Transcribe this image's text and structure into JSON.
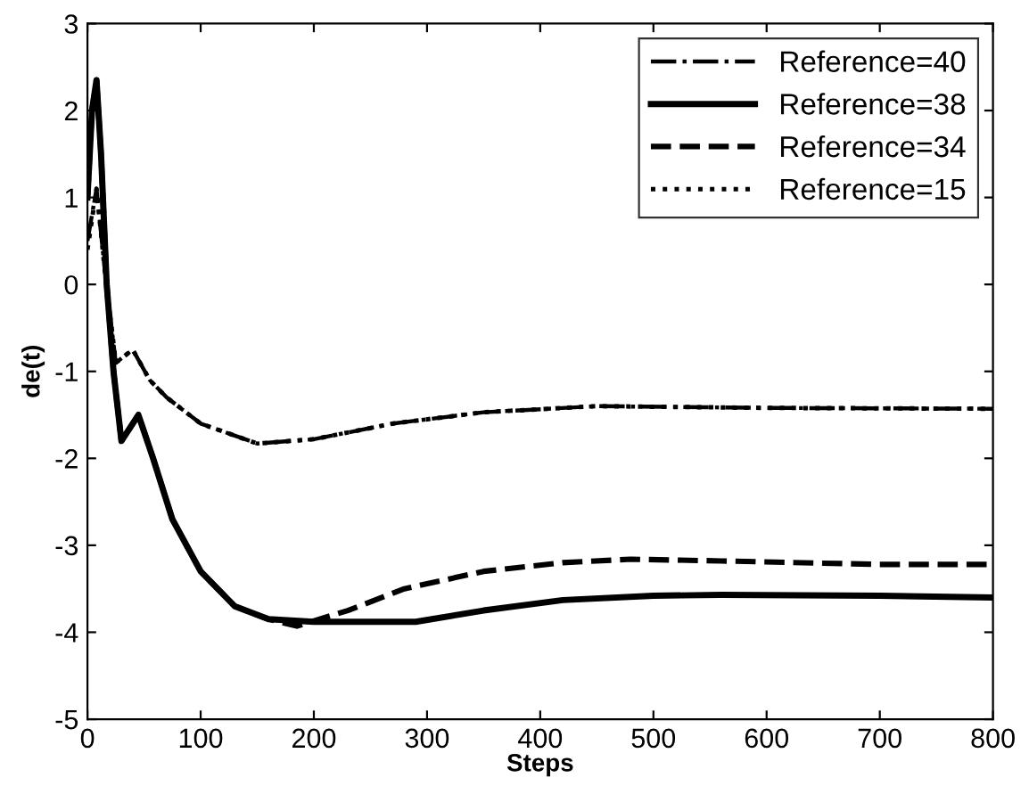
{
  "chart_data": {
    "type": "line",
    "xlabel": "Steps",
    "ylabel": "de(t)",
    "xlim": [
      0,
      800
    ],
    "ylim": [
      -5,
      3
    ],
    "xticks": [
      0,
      100,
      200,
      300,
      400,
      500,
      600,
      700,
      800
    ],
    "yticks": [
      -5,
      -4,
      -3,
      -2,
      -1,
      0,
      1,
      2,
      3
    ],
    "grid": false,
    "legend": "top right",
    "marker": "none",
    "series": [
      {
        "name": "Reference=40",
        "color": "#000000",
        "line_style": "dashdot",
        "x": [
          0,
          8,
          15,
          25,
          40,
          55,
          70,
          100,
          150,
          200,
          270,
          350,
          450,
          600,
          800
        ],
        "values": [
          0.5,
          1.1,
          0.2,
          -0.9,
          -0.75,
          -1.1,
          -1.3,
          -1.6,
          -1.83,
          -1.78,
          -1.6,
          -1.47,
          -1.4,
          -1.42,
          -1.43
        ]
      },
      {
        "name": "Reference=38",
        "color": "#000000",
        "line_style": "solid",
        "x": [
          0,
          4,
          8,
          12,
          17,
          23,
          30,
          45,
          58,
          75,
          100,
          130,
          160,
          200,
          290,
          350,
          420,
          500,
          560,
          700,
          800
        ],
        "values": [
          1.0,
          2.0,
          2.35,
          1.5,
          0,
          -1.0,
          -1.8,
          -1.5,
          -2.0,
          -2.7,
          -3.3,
          -3.7,
          -3.85,
          -3.88,
          -3.88,
          -3.75,
          -3.63,
          -3.58,
          -3.57,
          -3.58,
          -3.6
        ]
      },
      {
        "name": "Reference=34",
        "color": "#000000",
        "line_style": "dashed",
        "x": [
          0,
          4,
          8,
          12,
          17,
          23,
          30,
          45,
          58,
          75,
          100,
          130,
          160,
          185,
          230,
          280,
          350,
          420,
          480,
          560,
          700,
          800
        ],
        "values": [
          1.0,
          2.0,
          2.35,
          1.5,
          0,
          -1.0,
          -1.8,
          -1.5,
          -2.0,
          -2.7,
          -3.3,
          -3.7,
          -3.85,
          -3.93,
          -3.75,
          -3.5,
          -3.3,
          -3.2,
          -3.16,
          -3.18,
          -3.22,
          -3.22
        ]
      },
      {
        "name": "Reference=15",
        "color": "#000000",
        "line_style": "dotted",
        "x": [
          0,
          8,
          15,
          25,
          40,
          55,
          70,
          100,
          150,
          200,
          270,
          350,
          450,
          600,
          800
        ],
        "values": [
          0.4,
          1.1,
          0.2,
          -0.9,
          -0.75,
          -1.1,
          -1.3,
          -1.6,
          -1.83,
          -1.78,
          -1.6,
          -1.47,
          -1.4,
          -1.42,
          -1.43
        ]
      }
    ]
  }
}
